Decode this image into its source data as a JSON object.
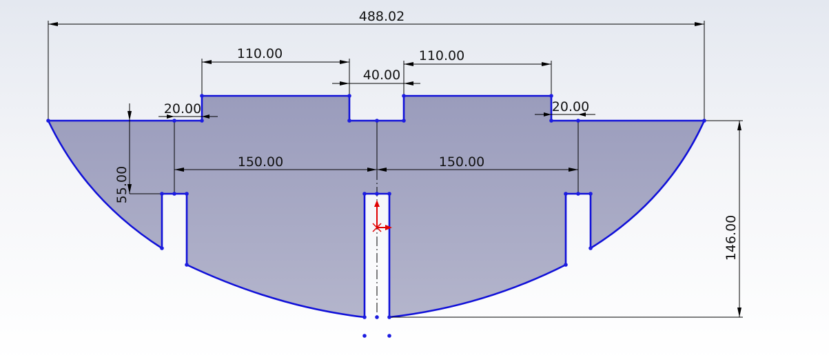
{
  "dimensions": {
    "overall_width": "488.02",
    "top_left_width": "110.00",
    "top_right_width": "110.00",
    "center_gap": "40.00",
    "left_offset": "20.00",
    "right_offset": "20.00",
    "left_span": "150.00",
    "right_span": "150.00",
    "slot_depth": "55.00",
    "overall_height": "146.00"
  },
  "colors": {
    "profile": "#1010d8",
    "region_fill": "#9ea0c0",
    "origin_arrow": "#e00000",
    "background_top": "#e4e8f0"
  }
}
